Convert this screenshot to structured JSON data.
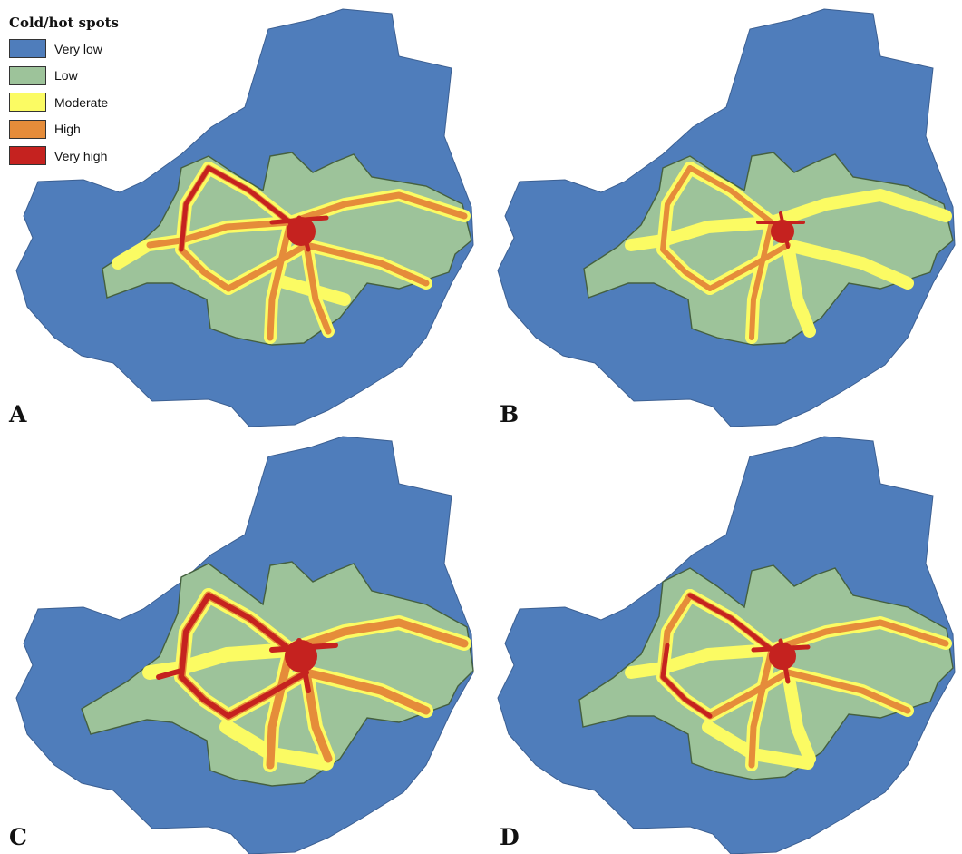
{
  "legend": {
    "title": "Cold/hot spots",
    "classes": [
      {
        "label": "Very low",
        "color": "#4f7dbb"
      },
      {
        "label": "Low",
        "color": "#9dc39a"
      },
      {
        "label": "Moderate",
        "color": "#fbfb63"
      },
      {
        "label": "High",
        "color": "#e58c3a"
      },
      {
        "label": "Very high",
        "color": "#c5221f"
      }
    ]
  },
  "panels": [
    {
      "label": "A"
    },
    {
      "label": "B"
    },
    {
      "label": "C"
    },
    {
      "label": "D"
    }
  ]
}
